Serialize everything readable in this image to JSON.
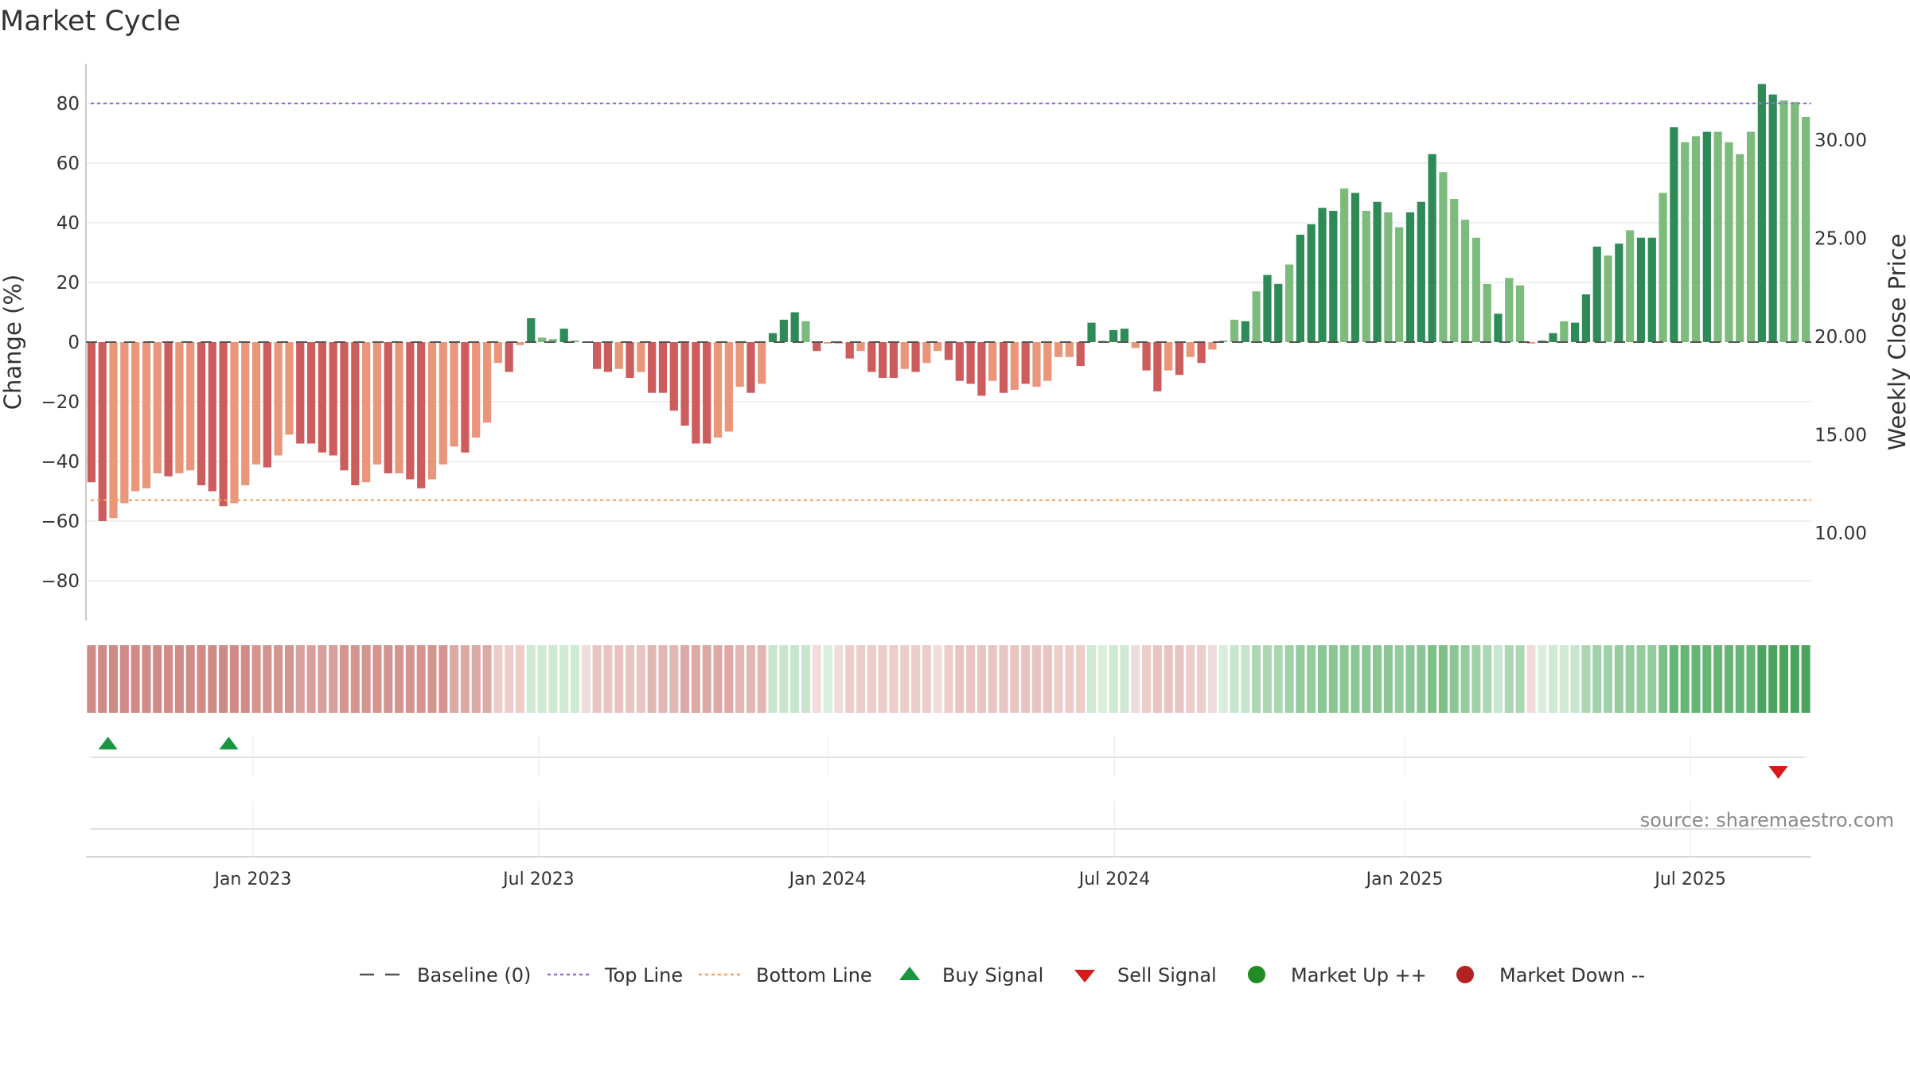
{
  "title": "Market Cycle",
  "source": "source: sharemaestro.com",
  "colors": {
    "strong_up": "#2e8b57",
    "up": "#7dbb7d",
    "strong_down": "#cd5c5c",
    "down": "#e9967a",
    "top_line": "#9370db",
    "bottom_line": "#f4a460",
    "baseline": "#555555",
    "buy": "#1a9641",
    "sell": "#d7191c",
    "market_up": "#228b22",
    "market_down": "#b22222"
  },
  "legend": [
    {
      "label": "Baseline (0)",
      "kind": "dash",
      "color": "#555555"
    },
    {
      "label": "Top Line",
      "kind": "dot",
      "color": "#9370db"
    },
    {
      "label": "Bottom Line",
      "kind": "dot",
      "color": "#f4a460"
    },
    {
      "label": "Buy Signal",
      "kind": "tri-up",
      "color": "#1a9641"
    },
    {
      "label": "Sell Signal",
      "kind": "tri-down",
      "color": "#d7191c"
    },
    {
      "label": "Market Up ++",
      "kind": "circle",
      "color": "#228b22"
    },
    {
      "label": "Market Down --",
      "kind": "circle",
      "color": "#b22222"
    }
  ],
  "chart_data": {
    "type": "bar",
    "ylabel": "Change (%)",
    "y2label": "Weekly Close Price",
    "ylim": [
      -92,
      94
    ],
    "yticks": [
      80,
      60,
      40,
      20,
      0,
      -20,
      -40,
      -60,
      -80
    ],
    "ytick_labels": [
      "80",
      "60",
      "40",
      "20",
      "0",
      "−20",
      "−40",
      "−60",
      "−80"
    ],
    "y2ticks": [
      30,
      25,
      20,
      15,
      10
    ],
    "y2tick_labels": [
      "30.00",
      "25.00",
      "20.00",
      "15.00",
      "10.00"
    ],
    "top_line": 80,
    "bottom_line": -53,
    "baseline": 0,
    "xticks": [
      "Jan 2023",
      "Jul 2023",
      "Jan 2024",
      "Jul 2024",
      "Jan 2025",
      "Jul 2025"
    ],
    "xtick_weeks": [
      14.7,
      40.7,
      67.0,
      93.1,
      119.5,
      145.5
    ],
    "values": [
      -47,
      -60,
      -59,
      -54,
      -50,
      -49,
      -44,
      -45,
      -44,
      -43,
      -48,
      -50,
      -55,
      -54,
      -48,
      -41,
      -42,
      -38,
      -31,
      -34,
      -34,
      -37,
      -38,
      -43,
      -48,
      -47,
      -41,
      -44,
      -44,
      -46,
      -49,
      -46,
      -41,
      -35,
      -37,
      -32,
      -27,
      -7,
      -10,
      -1,
      8,
      1.5,
      1,
      4.5,
      0.5,
      0,
      -9,
      -10,
      -9,
      -12,
      -10,
      -17,
      -17,
      -23,
      -28,
      -34,
      -34,
      -32,
      -30,
      -15,
      -17,
      -14,
      3,
      7.5,
      10,
      7,
      -3,
      -0.5,
      -0.5,
      -5.5,
      -3,
      -10,
      -12,
      -12,
      -9,
      -10,
      -7,
      -3,
      -6,
      -13,
      -14,
      -18,
      -13,
      -17,
      -16,
      -14,
      -15,
      -13,
      -5,
      -5,
      -8,
      6.5,
      0.5,
      4,
      4.5,
      -2,
      -9.5,
      -16.5,
      -9.5,
      -11,
      -5,
      -7,
      -2.5,
      0.5,
      7.5,
      7,
      17,
      22.5,
      19.5,
      26,
      36,
      39.5,
      45,
      44,
      51.5,
      50,
      44,
      47,
      43.5,
      38.5,
      43.5,
      47,
      63,
      57,
      48,
      41,
      35,
      19.5,
      9.5,
      21.5,
      19,
      -0.5,
      0.5,
      3,
      7,
      6.5,
      16,
      32,
      29,
      33,
      37.5,
      35,
      35,
      50,
      72,
      67,
      69,
      70.5,
      70.5,
      67,
      63,
      70.5,
      86.5,
      83,
      81,
      80.5,
      75.5
    ],
    "tones": [
      2,
      2,
      1,
      1,
      1,
      1,
      1,
      2,
      1,
      1,
      2,
      2,
      2,
      1,
      1,
      1,
      2,
      1,
      1,
      2,
      2,
      2,
      2,
      2,
      2,
      1,
      1,
      2,
      1,
      2,
      2,
      1,
      1,
      1,
      2,
      1,
      1,
      1,
      2,
      1,
      2,
      1,
      1,
      2,
      1,
      1,
      2,
      2,
      1,
      2,
      1,
      2,
      2,
      2,
      2,
      2,
      2,
      1,
      1,
      1,
      2,
      1,
      2,
      2,
      2,
      1,
      2,
      1,
      1,
      2,
      1,
      2,
      2,
      2,
      1,
      2,
      1,
      1,
      2,
      2,
      2,
      2,
      1,
      2,
      1,
      2,
      1,
      1,
      1,
      1,
      2,
      2,
      1,
      2,
      2,
      1,
      2,
      2,
      1,
      2,
      1,
      2,
      1,
      1,
      1,
      2,
      1,
      2,
      2,
      1,
      2,
      2,
      2,
      2,
      1,
      2,
      1,
      2,
      1,
      1,
      2,
      2,
      2,
      1,
      1,
      1,
      1,
      1,
      2,
      1,
      1,
      1,
      2,
      2,
      1,
      2,
      2,
      2,
      1,
      2,
      1,
      2,
      2,
      1,
      2,
      1,
      1,
      2,
      1,
      1,
      1,
      1,
      2,
      2,
      1,
      1,
      1
    ],
    "bands": [
      "#d18b86",
      "#d18b86",
      "#d18b86",
      "#d18b86",
      "#d18b86",
      "#d18b86",
      "#d18b86",
      "#d18b86",
      "#d18b86",
      "#d18b86",
      "#d18b86",
      "#d18b86",
      "#d18b86",
      "#d18b86",
      "#d18b86",
      "#d49591",
      "#d49591",
      "#d49591",
      "#d49591",
      "#d89f9b",
      "#d89f9b",
      "#d89f9b",
      "#d89f9b",
      "#d49591",
      "#d49591",
      "#d49591",
      "#d49591",
      "#d49591",
      "#d49591",
      "#d49591",
      "#d49591",
      "#d49591",
      "#d49591",
      "#dca9a5",
      "#dca9a5",
      "#dca9a5",
      "#dca9a5",
      "#eccdca",
      "#eccdca",
      "#eccdca",
      "#cfe9d3",
      "#cfe9d3",
      "#cfe9d3",
      "#cfe9d3",
      "#cfe9d3",
      "#efdddb",
      "#e8c5c2",
      "#e8c5c2",
      "#e8c5c2",
      "#e8c5c2",
      "#e8c5c2",
      "#e2b7b3",
      "#e2b7b3",
      "#e2b7b3",
      "#dca9a5",
      "#dca9a5",
      "#dca9a5",
      "#dca9a5",
      "#dca9a5",
      "#e2b7b3",
      "#e2b7b3",
      "#e2b7b3",
      "#c8e6cd",
      "#c8e6cd",
      "#c8e6cd",
      "#c8e6cd",
      "#efdddb",
      "#d9efdc",
      "#efdddb",
      "#eccdca",
      "#eccdca",
      "#eccdca",
      "#eccdca",
      "#eccdca",
      "#eccdca",
      "#eccdca",
      "#eccdca",
      "#efdddb",
      "#eccdca",
      "#e8c5c2",
      "#e8c5c2",
      "#e8c5c2",
      "#e8c5c2",
      "#e8c5c2",
      "#e8c5c2",
      "#e8c5c2",
      "#e8c5c2",
      "#e8c5c2",
      "#eccdca",
      "#eccdca",
      "#eccdca",
      "#cfe9d3",
      "#d9efdc",
      "#cfe9d3",
      "#cfe9d3",
      "#efdddb",
      "#eccdca",
      "#e8c5c2",
      "#e8c5c2",
      "#e8c5c2",
      "#eccdca",
      "#eccdca",
      "#efdddb",
      "#d9efdc",
      "#c8e6cd",
      "#c8e6cd",
      "#abd8b3",
      "#abd8b3",
      "#abd8b3",
      "#9fd2a8",
      "#94cc9d",
      "#94cc9d",
      "#8ac794",
      "#8ac794",
      "#8ac794",
      "#8ac794",
      "#8ac794",
      "#8ac794",
      "#8ac794",
      "#94cc9d",
      "#8ac794",
      "#8ac794",
      "#7cc087",
      "#7cc087",
      "#8ac794",
      "#94cc9d",
      "#9fd2a8",
      "#abd8b3",
      "#c8e6cd",
      "#abd8b3",
      "#abd8b3",
      "#f1dbd9",
      "#d9efdc",
      "#cfe9d3",
      "#cfe9d3",
      "#c8e6cd",
      "#abd8b3",
      "#9fd2a8",
      "#9fd2a8",
      "#94cc9d",
      "#94cc9d",
      "#94cc9d",
      "#94cc9d",
      "#7cc087",
      "#66b574",
      "#66b574",
      "#66b574",
      "#66b574",
      "#66b574",
      "#66b574",
      "#66b574",
      "#66b574",
      "#4aa55c",
      "#4aa55c",
      "#4aa55c",
      "#4aa55c",
      "#4aa55c"
    ],
    "buy_signals": [
      1.5,
      12.5
    ],
    "sell_signals": [
      153.5
    ]
  }
}
